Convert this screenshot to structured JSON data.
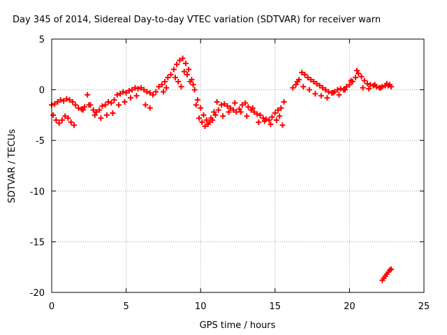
{
  "chart_data": {
    "type": "scatter",
    "title": "Day 345 of 2014, Sidereal Day-to-day VTEC variation (SDTVAR) for receiver warn",
    "xlabel": "GPS time / hours",
    "ylabel": "SDTVAR / TECUs",
    "xlim": [
      0,
      25
    ],
    "ylim": [
      -20,
      5
    ],
    "xticks": [
      0,
      5,
      10,
      15,
      20,
      25
    ],
    "xtick_labels": [
      "0",
      "5",
      "10",
      "15",
      "20",
      "25"
    ],
    "yticks": [
      -20,
      -15,
      -10,
      -5,
      0,
      5
    ],
    "ytick_labels": [
      "-20",
      "-15",
      "-10",
      "-5",
      "0",
      "5"
    ],
    "grid": true,
    "marker": "+",
    "color": "#ff0000",
    "series": [
      {
        "name": "SDTVAR",
        "x": [
          0.0,
          0.2,
          0.4,
          0.6,
          0.8,
          1.0,
          1.2,
          1.4,
          1.6,
          1.8,
          2.0,
          2.2,
          2.4,
          2.6,
          2.8,
          3.0,
          3.2,
          3.4,
          3.6,
          3.8,
          4.0,
          4.2,
          4.4,
          4.6,
          4.8,
          5.0,
          5.2,
          5.4,
          5.6,
          5.8,
          6.0,
          6.2,
          6.4,
          6.6,
          6.8,
          7.0,
          7.2,
          7.4,
          7.6,
          7.8,
          8.0,
          8.2,
          8.4,
          8.6,
          8.8,
          9.0,
          9.2,
          9.4,
          9.6,
          9.8,
          10.0,
          10.2,
          10.4,
          10.6,
          10.8,
          11.0,
          11.2,
          11.4,
          11.6,
          11.8,
          12.0,
          12.2,
          12.4,
          12.6,
          12.8,
          13.0,
          13.2,
          13.4,
          13.6,
          13.8,
          14.0,
          14.2,
          14.4,
          14.6,
          14.8,
          15.0,
          15.2,
          15.4,
          15.6,
          16.2,
          16.4,
          16.6,
          16.8,
          17.0,
          17.2,
          17.4,
          17.6,
          17.8,
          18.0,
          18.2,
          18.4,
          18.6,
          18.8,
          19.0,
          19.2,
          19.4,
          19.6,
          19.8,
          20.0,
          20.2,
          20.4,
          20.6,
          20.8,
          21.0,
          21.2,
          21.4,
          21.6,
          21.8,
          22.0,
          22.2,
          22.4,
          22.6,
          22.8,
          0.1,
          0.3,
          0.5,
          0.7,
          0.9,
          1.1,
          1.3,
          1.5,
          2.1,
          2.5,
          2.9,
          3.3,
          3.7,
          4.1,
          4.5,
          4.9,
          5.3,
          5.7,
          6.3,
          6.6,
          7.5,
          7.7,
          8.3,
          8.5,
          8.7,
          8.9,
          9.1,
          9.3,
          9.5,
          9.7,
          9.9,
          10.1,
          10.3,
          10.5,
          10.7,
          10.9,
          11.1,
          11.5,
          11.9,
          12.3,
          12.7,
          13.1,
          13.5,
          13.9,
          14.3,
          14.7,
          15.1,
          15.3,
          15.5,
          16.5,
          16.9,
          17.3,
          17.7,
          18.1,
          18.5,
          18.9,
          19.3,
          19.7,
          20.1,
          20.5,
          20.9,
          21.3,
          21.7,
          22.1,
          22.5,
          22.7,
          22.2,
          22.3,
          22.4,
          22.5,
          22.6,
          22.7,
          22.8
        ],
        "y": [
          -1.5,
          -1.4,
          -1.2,
          -1.0,
          -1.1,
          -0.9,
          -1.0,
          -1.2,
          -1.5,
          -1.8,
          -1.9,
          -1.7,
          -0.5,
          -1.5,
          -2.0,
          -2.2,
          -2.0,
          -1.6,
          -1.5,
          -1.2,
          -1.3,
          -1.0,
          -0.5,
          -0.4,
          -0.2,
          -0.3,
          -0.1,
          0.0,
          0.2,
          0.1,
          0.2,
          0.0,
          -0.2,
          -0.3,
          -0.5,
          -0.2,
          0.3,
          0.5,
          0.8,
          1.2,
          1.5,
          2.0,
          2.5,
          2.9,
          3.1,
          2.6,
          2.0,
          1.0,
          0.0,
          -1.0,
          -1.8,
          -2.5,
          -3.0,
          -3.2,
          -3.0,
          -2.5,
          -2.0,
          -1.5,
          -1.4,
          -1.6,
          -1.8,
          -2.0,
          -2.2,
          -1.9,
          -1.5,
          -1.3,
          -1.7,
          -2.0,
          -2.2,
          -2.4,
          -2.5,
          -2.8,
          -2.9,
          -3.0,
          -2.7,
          -2.3,
          -2.0,
          -1.8,
          -1.2,
          0.2,
          0.5,
          1.0,
          1.7,
          1.5,
          1.2,
          1.0,
          0.8,
          0.6,
          0.4,
          0.2,
          0.0,
          -0.2,
          -0.3,
          -0.2,
          0.0,
          0.1,
          0.0,
          0.3,
          0.5,
          0.8,
          1.2,
          1.6,
          1.3,
          0.9,
          0.6,
          0.5,
          0.4,
          0.3,
          0.2,
          0.3,
          0.4,
          0.4,
          0.3,
          -2.5,
          -3.0,
          -3.3,
          -3.0,
          -2.6,
          -2.8,
          -3.2,
          -3.5,
          -2.0,
          -1.5,
          -2.5,
          -2.8,
          -2.5,
          -2.3,
          -1.5,
          -1.2,
          -0.8,
          -0.6,
          -1.5,
          -1.8,
          -0.2,
          0.2,
          1.2,
          0.8,
          0.3,
          1.8,
          1.5,
          0.8,
          0.5,
          -1.5,
          -2.8,
          -3.2,
          -3.6,
          -3.4,
          -2.8,
          -2.2,
          -1.2,
          -2.6,
          -2.2,
          -1.3,
          -2.2,
          -2.6,
          -1.8,
          -3.2,
          -3.1,
          -3.4,
          -3.0,
          -2.6,
          -3.5,
          0.8,
          0.3,
          0.0,
          -0.4,
          -0.6,
          -0.8,
          -0.3,
          -0.5,
          0.0,
          0.9,
          1.9,
          0.2,
          0.1,
          0.5,
          0.2,
          0.6,
          0.5,
          -18.8,
          -18.6,
          -18.4,
          -18.2,
          -18.0,
          -17.8,
          -17.7
        ]
      }
    ]
  }
}
